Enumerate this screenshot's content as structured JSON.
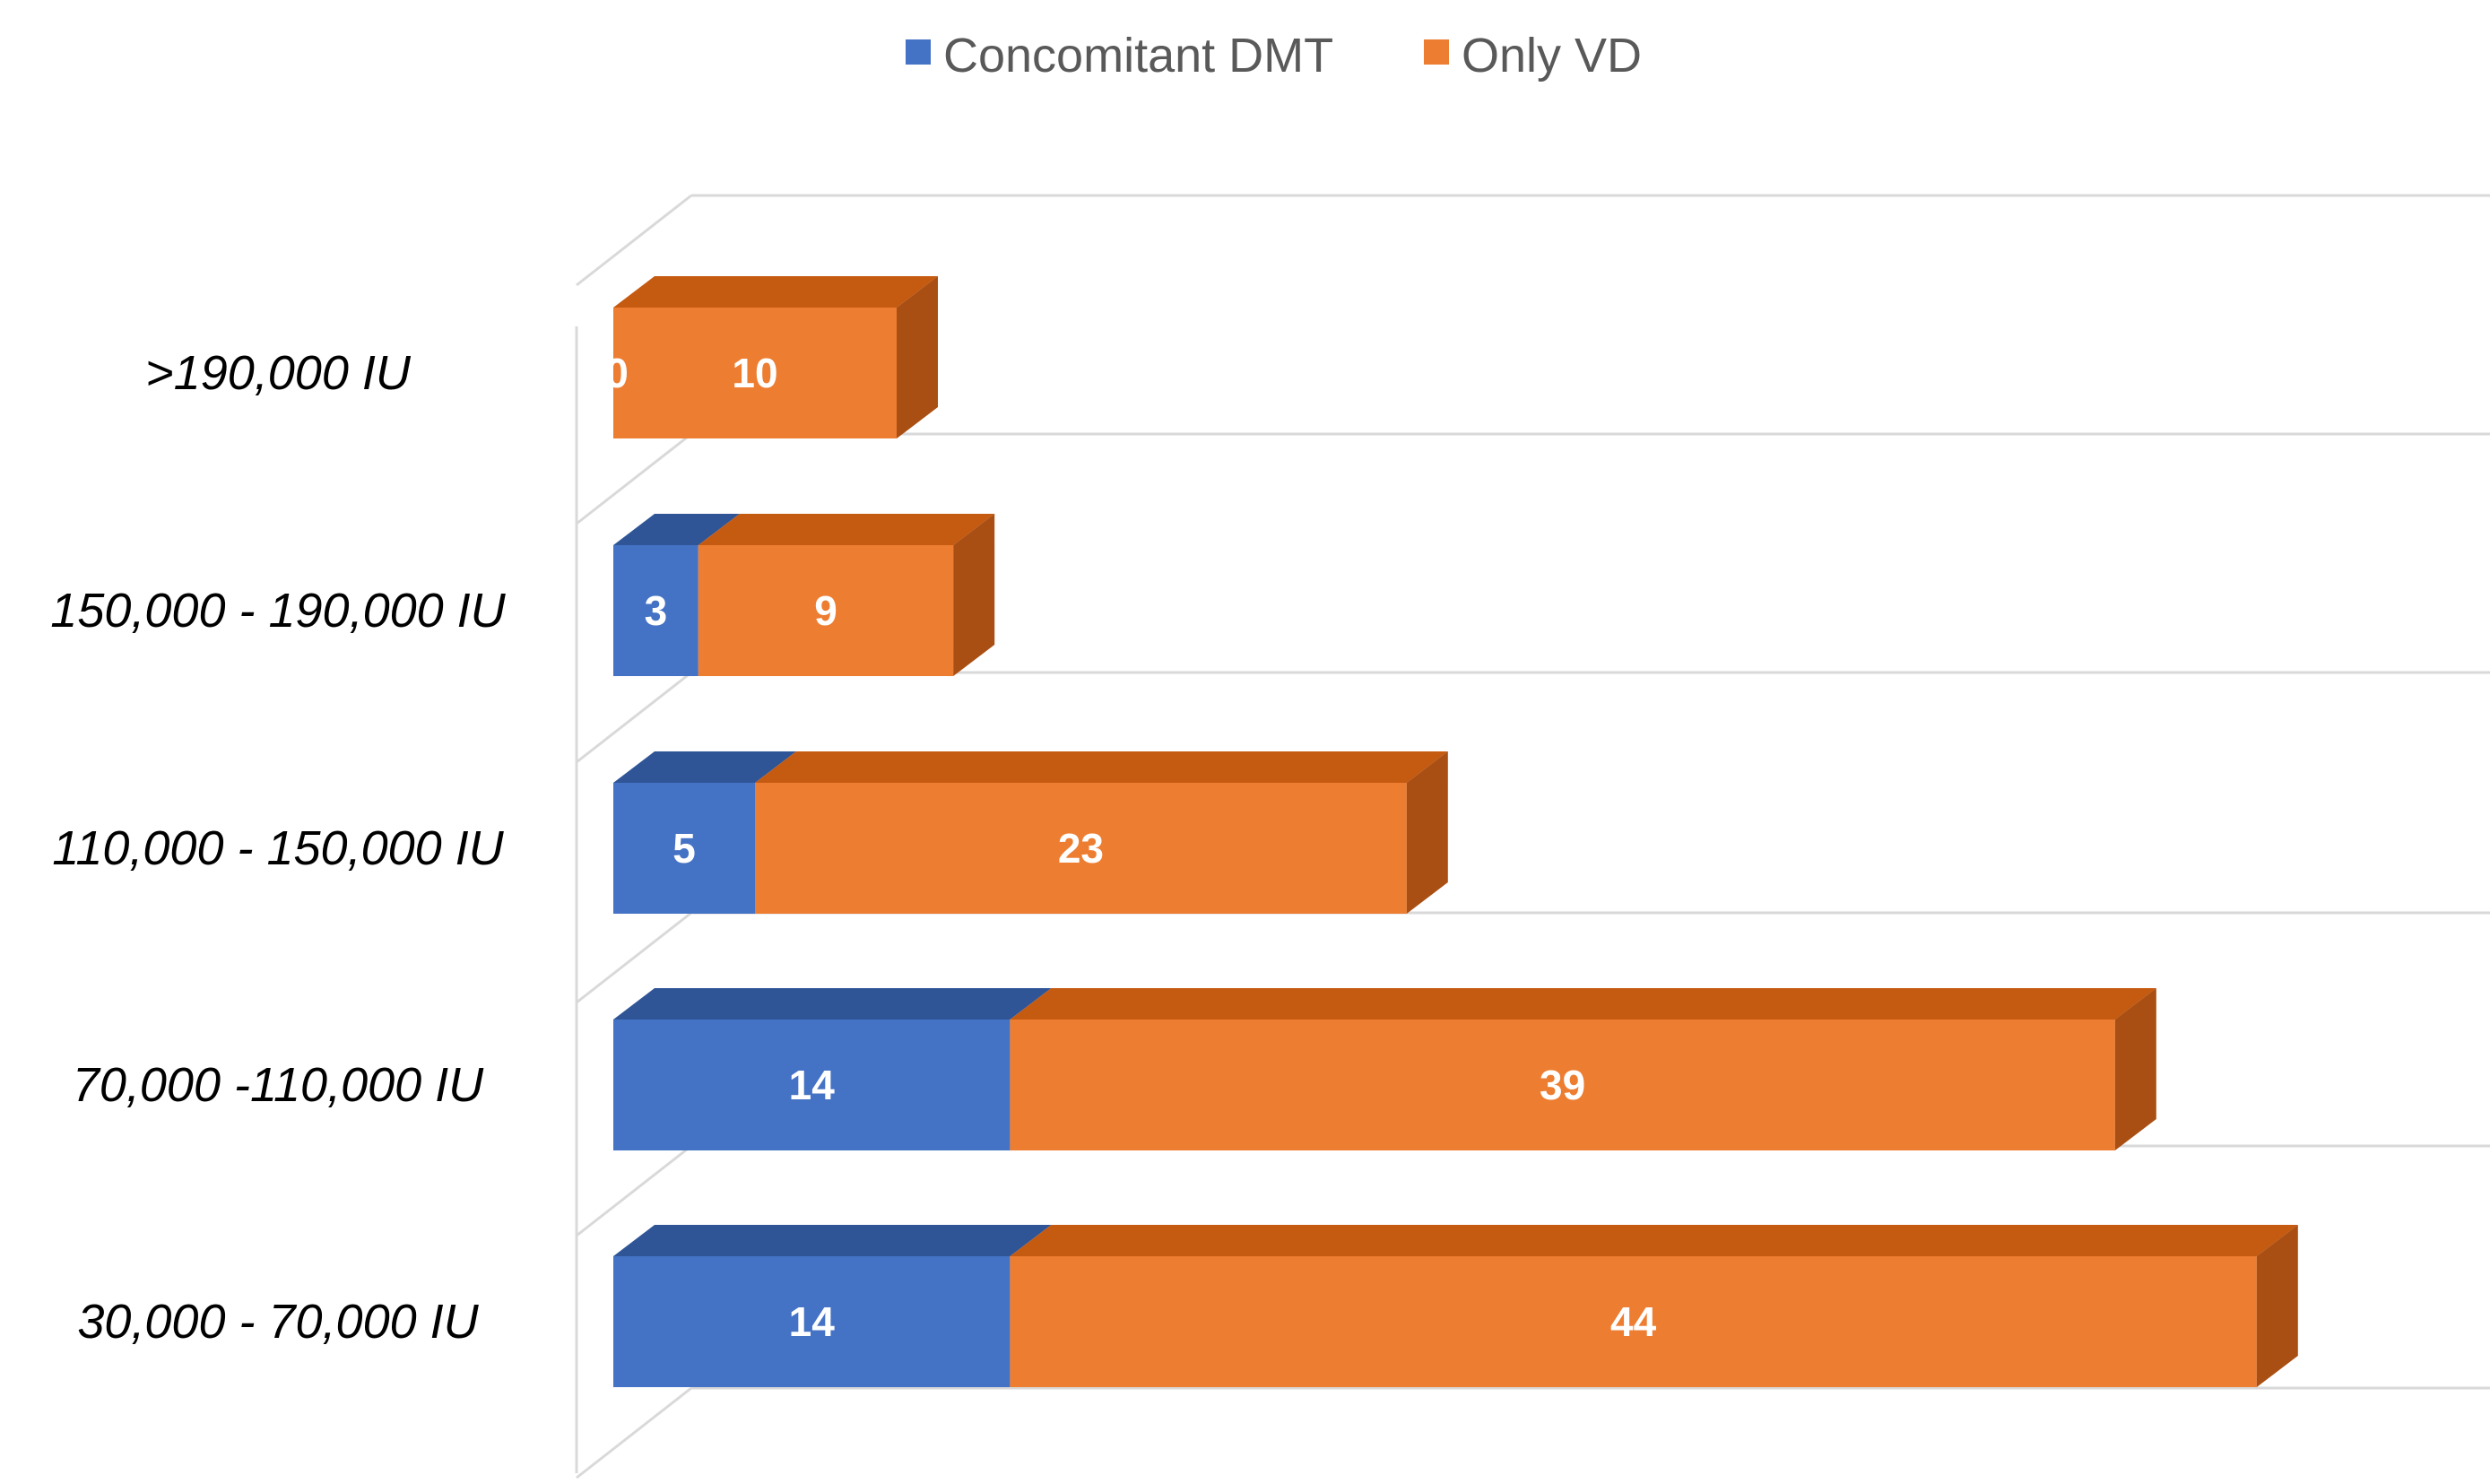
{
  "chart_data": {
    "type": "bar",
    "orientation": "horizontal",
    "stacked": true,
    "style": "3d",
    "categories": [
      ">190,000 IU",
      "150,000 - 190,000 IU",
      "110,000 - 150,000 IU",
      "70,000 -110,000 IU",
      "30,000 - 70,000 IU"
    ],
    "series": [
      {
        "name": "Concomitant DMT",
        "values": [
          0,
          3,
          5,
          14,
          14
        ],
        "color": "#4472C4",
        "top_color": "#2F5597",
        "side_color": "#2F5597"
      },
      {
        "name": "Only VD",
        "values": [
          10,
          9,
          23,
          39,
          44
        ],
        "color": "#ED7D31",
        "top_color": "#C55A11",
        "side_color": "#A94F14"
      }
    ],
    "data_labels": true,
    "xlim": [
      0,
      60
    ],
    "grid": true,
    "legend_position": "top",
    "title": "",
    "xlabel": "",
    "ylabel": ""
  }
}
